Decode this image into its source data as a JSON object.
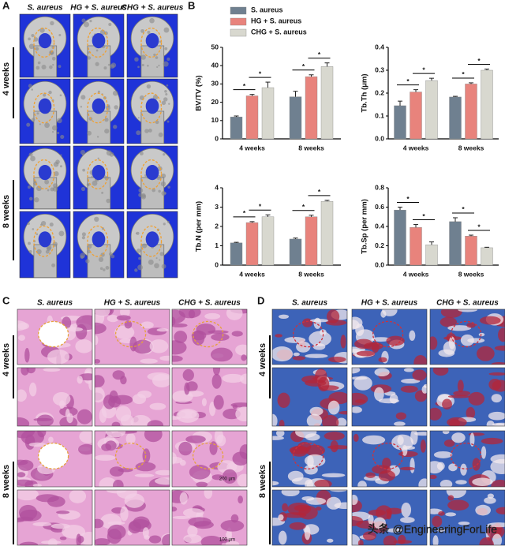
{
  "panel_labels": [
    "A",
    "B",
    "C",
    "D"
  ],
  "panel_a": {
    "columns": [
      "S. aureus",
      "HG + S. aureus",
      "CHG + S. aureus"
    ],
    "rows": [
      "4 weeks",
      "8 weeks"
    ]
  },
  "panel_c": {
    "columns": [
      "S. aureus",
      "HG + S. aureus",
      "CHG + S. aureus"
    ],
    "rows": [
      "4 weeks",
      "8 weeks"
    ],
    "scale_labels": [
      "200 μm",
      "100 μm"
    ]
  },
  "panel_d": {
    "columns": [
      "S. aureus",
      "HG + S. aureus",
      "CHG + S. aureus"
    ],
    "rows": [
      "4 weeks",
      "8 weeks"
    ]
  },
  "watermark": "头条 @EngineeringForLife",
  "chart_data": [
    {
      "type": "bar",
      "ylabel": "BV/TV (%)",
      "categories": [
        "4 weeks",
        "8 weeks"
      ],
      "ylim": [
        0,
        50
      ],
      "yticks": [
        0,
        10,
        20,
        30,
        40,
        50
      ],
      "series": [
        {
          "name": "S. aureus",
          "color": "#6f8090",
          "values": [
            12,
            23
          ],
          "errors": [
            0.5,
            3
          ]
        },
        {
          "name": "HG + S. aureus",
          "color": "#e8837c",
          "values": [
            23.5,
            34
          ],
          "errors": [
            0.8,
            1
          ]
        },
        {
          "name": "CHG + S. aureus",
          "color": "#d8d8cf",
          "values": [
            28,
            39.5
          ],
          "errors": [
            3,
            2
          ]
        }
      ],
      "annotations": [
        "*",
        "*",
        "*",
        "*"
      ]
    },
    {
      "type": "bar",
      "ylabel": "Tb.Th (μm)",
      "categories": [
        "4 weeks",
        "8 weeks"
      ],
      "ylim": [
        0,
        0.4
      ],
      "yticks": [
        {
          "value": 0,
          "label": "0.0"
        },
        0.1,
        0.2,
        0.3,
        0.4
      ],
      "series": [
        {
          "color": "#6f8090",
          "values": [
            0.145,
            0.183
          ],
          "errors": [
            0.02,
            0.003
          ]
        },
        {
          "color": "#e8837c",
          "values": [
            0.205,
            0.24
          ],
          "errors": [
            0.01,
            0.005
          ]
        },
        {
          "color": "#d8d8cf",
          "values": [
            0.255,
            0.3
          ],
          "errors": [
            0.01,
            0.005
          ]
        }
      ],
      "annotations": [
        "*",
        "*",
        "*",
        "*"
      ]
    },
    {
      "type": "bar",
      "ylabel": "Tb.N (per mm)",
      "categories": [
        "4 weeks",
        "8 weeks"
      ],
      "ylim": [
        0,
        4
      ],
      "yticks": [
        0,
        1,
        2,
        3,
        4
      ],
      "series": [
        {
          "color": "#6f8090",
          "values": [
            1.15,
            1.35
          ],
          "errors": [
            0.03,
            0.05
          ]
        },
        {
          "color": "#e8837c",
          "values": [
            2.2,
            2.5
          ],
          "errors": [
            0.05,
            0.08
          ]
        },
        {
          "color": "#d8d8cf",
          "values": [
            2.5,
            3.3
          ],
          "errors": [
            0.1,
            0.05
          ]
        }
      ],
      "annotations": [
        "*",
        "*",
        "*",
        "*"
      ]
    },
    {
      "type": "bar",
      "ylabel": "Tb.Sp (per mm)",
      "categories": [
        "4 weeks",
        "8 weeks"
      ],
      "ylim": [
        0,
        0.8
      ],
      "yticks": [
        {
          "value": 0,
          "label": "0.0"
        },
        0.2,
        0.4,
        0.6,
        0.8
      ],
      "series": [
        {
          "color": "#6f8090",
          "values": [
            0.57,
            0.45
          ],
          "errors": [
            0.03,
            0.04
          ]
        },
        {
          "color": "#e8837c",
          "values": [
            0.39,
            0.3
          ],
          "errors": [
            0.03,
            0.01
          ]
        },
        {
          "color": "#d8d8cf",
          "values": [
            0.21,
            0.18
          ],
          "errors": [
            0.03,
            0.005
          ]
        }
      ],
      "annotations": [
        "*",
        "*",
        "*",
        "*"
      ]
    }
  ]
}
